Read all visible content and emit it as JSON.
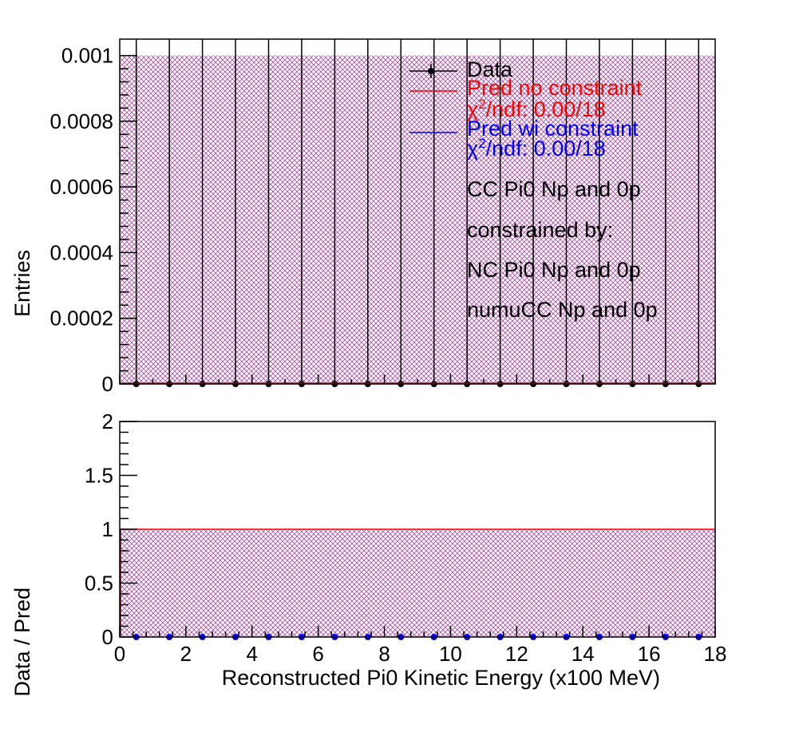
{
  "chart_data": [
    {
      "type": "bar",
      "panel": "top",
      "ylabel": "Entries",
      "xlim": [
        0,
        18
      ],
      "ylim": [
        0,
        0.00105
      ],
      "yticks": [
        "0",
        "0.0002",
        "0.0004",
        "0.0006",
        "0.0008",
        "0.001"
      ],
      "ytick_values": [
        0,
        0.0002,
        0.0004,
        0.0006,
        0.0008,
        0.001
      ],
      "bin_centers": [
        0.5,
        1.5,
        2.5,
        3.5,
        4.5,
        5.5,
        6.5,
        7.5,
        8.5,
        9.5,
        10.5,
        11.5,
        12.5,
        13.5,
        14.5,
        15.5,
        16.5,
        17.5
      ],
      "data_values": [
        0,
        0,
        0,
        0,
        0,
        0,
        0,
        0,
        0,
        0,
        0,
        0,
        0,
        0,
        0,
        0,
        0,
        0
      ],
      "data_error_upper": 0.001,
      "pred_no_constraint": [
        0,
        0,
        0,
        0,
        0,
        0,
        0,
        0,
        0,
        0,
        0,
        0,
        0,
        0,
        0,
        0,
        0,
        0
      ],
      "pred_wi_constraint": [
        0,
        0,
        0,
        0,
        0,
        0,
        0,
        0,
        0,
        0,
        0,
        0,
        0,
        0,
        0,
        0,
        0,
        0
      ],
      "uncertainty_band_upper": 0.001,
      "legend": {
        "placement": "top-right",
        "entries": [
          {
            "label": "Data",
            "color": "#000000"
          },
          {
            "label": "Pred no constraint",
            "color": "#ff0000",
            "chi_prefix": "χ",
            "chi_sup": "2",
            "chi_rest": "/ndf: 0.00/18"
          },
          {
            "label": "Pred wi constraint",
            "color": "#0000ff",
            "chi_prefix": "χ",
            "chi_sup": "2",
            "chi_rest": "/ndf: 0.00/18"
          }
        ],
        "notes": [
          "CC Pi0 Np and 0p",
          "constrained by:",
          "NC Pi0 Np and 0p",
          "numuCC Np and 0p"
        ]
      }
    },
    {
      "type": "scatter",
      "panel": "bottom",
      "xlabel": "Reconstructed Pi0 Kinetic Energy (x100 MeV)",
      "ylabel": "Data / Pred",
      "xlim": [
        0,
        18
      ],
      "ylim": [
        0,
        2
      ],
      "xticks": [
        "0",
        "2",
        "4",
        "6",
        "8",
        "10",
        "12",
        "14",
        "16",
        "18"
      ],
      "xtick_values": [
        0,
        2,
        4,
        6,
        8,
        10,
        12,
        14,
        16,
        18
      ],
      "yticks": [
        "0",
        "0.5",
        "1",
        "1.5",
        "2"
      ],
      "ytick_values": [
        0,
        0.5,
        1,
        1.5,
        2
      ],
      "bin_centers": [
        0.5,
        1.5,
        2.5,
        3.5,
        4.5,
        5.5,
        6.5,
        7.5,
        8.5,
        9.5,
        10.5,
        11.5,
        12.5,
        13.5,
        14.5,
        15.5,
        16.5,
        17.5
      ],
      "ratio_values": [
        0,
        0,
        0,
        0,
        0,
        0,
        0,
        0,
        0,
        0,
        0,
        0,
        0,
        0,
        0,
        0,
        0,
        0
      ],
      "reference_line": 1,
      "uncertainty_band_upper": 1
    }
  ],
  "colors": {
    "data": "#000000",
    "pred_no_constraint": "#ff0000",
    "pred_wi_constraint": "#0000ff",
    "hatch": "#a34a9e"
  }
}
